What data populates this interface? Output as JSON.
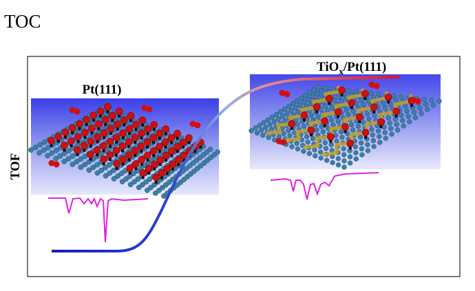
{
  "header": {
    "title": "TOC"
  },
  "figure": {
    "y_axis_label": "TOF",
    "left_panel": {
      "label": "Pt(111)"
    },
    "right_panel": {
      "label_main": "TiO",
      "label_sub": "x",
      "label_rest": "/Pt(111)"
    }
  }
}
